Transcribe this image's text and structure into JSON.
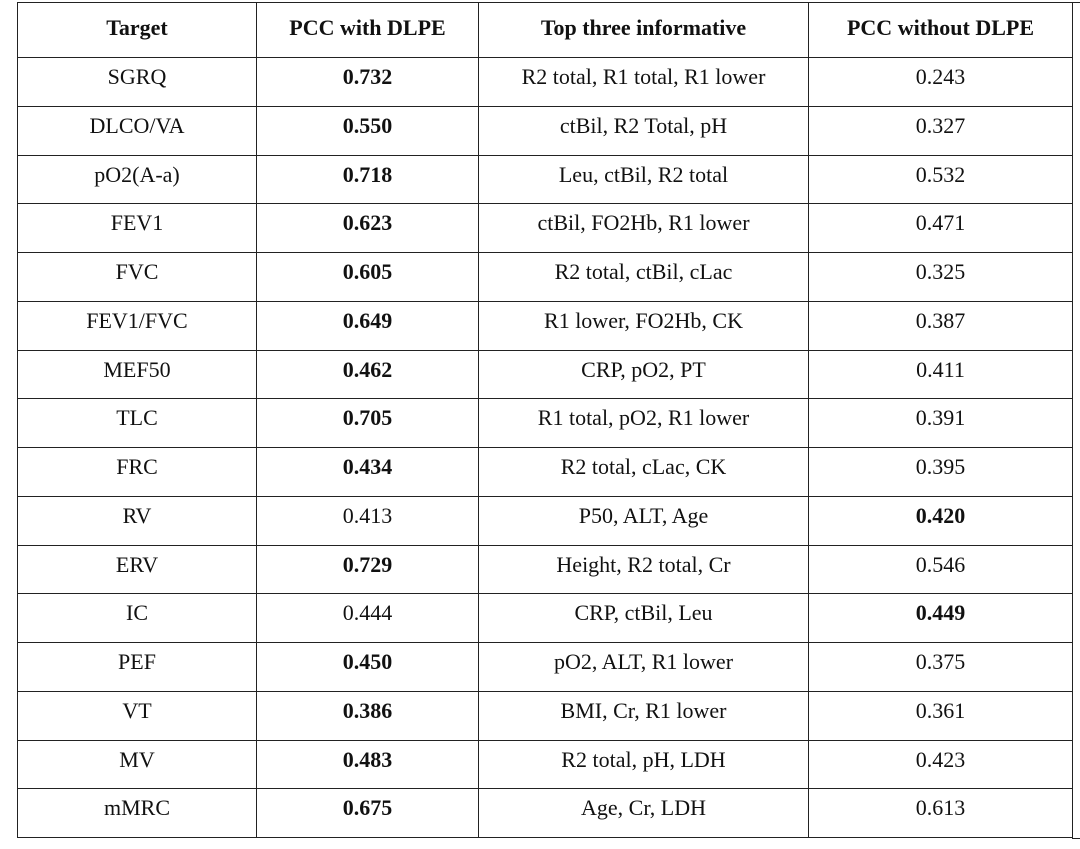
{
  "table": {
    "header": [
      "Target",
      "PCC with DLPE",
      "Top three informative",
      "PCC without DLPE"
    ],
    "rows": [
      [
        "SGRQ",
        "0.732",
        "R2 total, R1 total, R1 lower",
        "0.243"
      ],
      [
        "DLCO/VA",
        "0.550",
        "ctBil, R2 Total, pH",
        "0.327"
      ],
      [
        "pO2(A-a)",
        "0.718",
        "Leu, ctBil, R2 total",
        "0.532"
      ],
      [
        "FEV1",
        "0.623",
        "ctBil, FO2Hb, R1 lower",
        "0.471"
      ],
      [
        "FVC",
        "0.605",
        "R2 total, ctBil, cLac",
        "0.325"
      ],
      [
        "FEV1/FVC",
        "0.649",
        "R1 lower, FO2Hb, CK",
        "0.387"
      ],
      [
        "MEF50",
        "0.462",
        "CRP, pO2, PT",
        "0.411"
      ],
      [
        "TLC",
        "0.705",
        "R1 total, pO2, R1 lower",
        "0.391"
      ],
      [
        "FRC",
        "0.434",
        "R2 total, cLac, CK",
        "0.395"
      ],
      [
        "RV",
        "0.413",
        "P50, ALT, Age",
        "0.420"
      ],
      [
        "ERV",
        "0.729",
        "Height, R2 total, Cr",
        "0.546"
      ],
      [
        "IC",
        "0.444",
        "CRP, ctBil, Leu",
        "0.449"
      ],
      [
        "PEF",
        "0.450",
        "pO2, ALT, R1 lower",
        "0.375"
      ],
      [
        "VT",
        "0.386",
        "BMI, Cr, R1 lower",
        "0.361"
      ],
      [
        "MV",
        "0.483",
        "R2 total, pH, LDH",
        "0.423"
      ],
      [
        "mMRC",
        "0.675",
        "Age, Cr, LDH",
        "0.613"
      ]
    ],
    "bold_column": [
      1,
      1,
      1,
      1,
      1,
      1,
      1,
      1,
      1,
      3,
      1,
      3,
      1,
      1,
      1,
      1
    ]
  }
}
